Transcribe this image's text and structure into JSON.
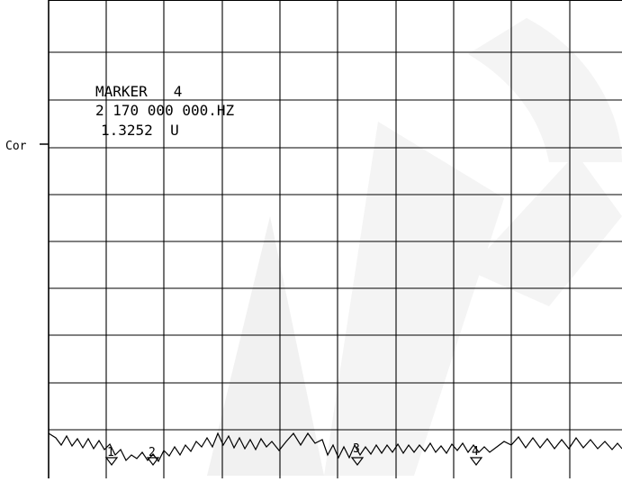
{
  "display": {
    "reference_label": "Cor",
    "marker_readout": {
      "title": "MARKER   4",
      "frequency": "2 170 000 000.HZ",
      "value": "1.3252  U"
    },
    "markers": [
      {
        "number": "1"
      },
      {
        "number": "2"
      },
      {
        "number": "3"
      },
      {
        "number": "4"
      }
    ],
    "colors": {
      "background": "#ffffff",
      "ink": "#000000",
      "watermark": "#f1f1f1"
    }
  }
}
